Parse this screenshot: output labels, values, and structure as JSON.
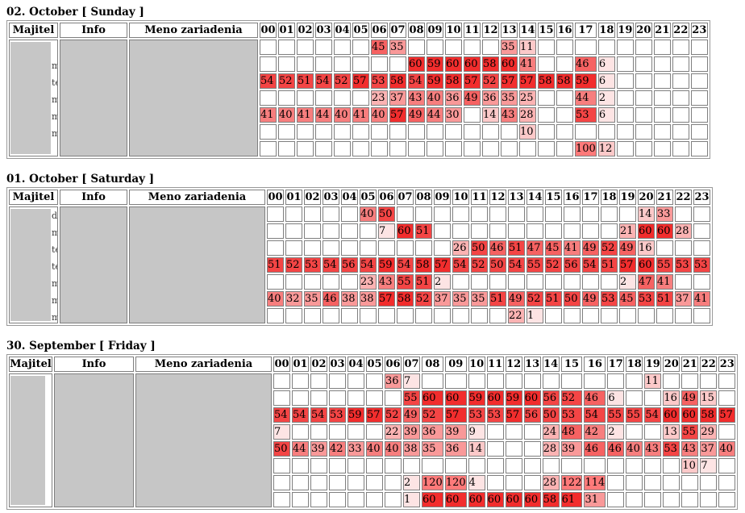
{
  "headers": {
    "owner": "Majitel",
    "info": "Info",
    "device": "Meno zariadenia"
  },
  "days": [
    {
      "title": "02. October [ Sunday ]",
      "hours": [
        "00",
        "01",
        "02",
        "03",
        "04",
        "05",
        "06",
        "07",
        "08",
        "09",
        "10",
        "11",
        "12",
        "13",
        "14",
        "15",
        "16",
        "17",
        "18",
        "19",
        "20",
        "21",
        "22",
        "23"
      ],
      "stubs": [
        "",
        "m",
        "te",
        "m",
        "m",
        "m",
        ""
      ],
      "rows": [
        [
          "",
          "",
          "",
          "",
          "",
          "",
          "45",
          "35",
          "",
          "",
          "",
          "",
          "",
          "35",
          "11",
          "",
          "",
          "",
          "",
          "",
          "",
          "",
          "",
          ""
        ],
        [
          "",
          "",
          "",
          "",
          "",
          "",
          "",
          "",
          "60",
          "59",
          "60",
          "60",
          "58",
          "60",
          "41",
          "",
          "",
          "46",
          "6",
          "",
          "",
          "",
          "",
          ""
        ],
        [
          "54",
          "52",
          "51",
          "54",
          "52",
          "57",
          "53",
          "58",
          "54",
          "59",
          "58",
          "57",
          "52",
          "57",
          "57",
          "58",
          "58",
          "59",
          "6",
          "",
          "",
          "",
          "",
          ""
        ],
        [
          "",
          "",
          "",
          "",
          "",
          "",
          "23",
          "37",
          "43",
          "40",
          "36",
          "49",
          "36",
          "35",
          "25",
          "",
          "",
          "44",
          "2",
          "",
          "",
          "",
          "",
          ""
        ],
        [
          "41",
          "40",
          "41",
          "44",
          "40",
          "41",
          "40",
          "57",
          "49",
          "44",
          "30",
          "",
          "14",
          "43",
          "28",
          "",
          "",
          "53",
          "6",
          "",
          "",
          "",
          "",
          ""
        ],
        [
          "",
          "",
          "",
          "",
          "",
          "",
          "",
          "",
          "",
          "",
          "",
          "",
          "",
          "",
          "10",
          "",
          "",
          "",
          "",
          "",
          "",
          "",
          "",
          ""
        ],
        [
          "",
          "",
          "",
          "",
          "",
          "",
          "",
          "",
          "",
          "",
          "",
          "",
          "",
          "",
          "",
          "",
          "",
          "100",
          "12",
          "",
          "",
          "",
          "",
          ""
        ]
      ]
    },
    {
      "title": "01. October [ Saturday ]",
      "hours": [
        "00",
        "01",
        "02",
        "03",
        "04",
        "05",
        "06",
        "07",
        "08",
        "09",
        "10",
        "11",
        "12",
        "13",
        "14",
        "15",
        "16",
        "17",
        "18",
        "19",
        "20",
        "21",
        "22",
        "23"
      ],
      "stubs": [
        "d",
        "m",
        "te",
        "te",
        "m",
        "m",
        "m"
      ],
      "rows": [
        [
          "",
          "",
          "",
          "",
          "",
          "40",
          "50",
          "",
          "",
          "",
          "",
          "",
          "",
          "",
          "",
          "",
          "",
          "",
          "",
          "",
          "14",
          "33",
          "",
          ""
        ],
        [
          "",
          "",
          "",
          "",
          "",
          "",
          "7",
          "60",
          "51",
          "",
          "",
          "",
          "",
          "",
          "",
          "",
          "",
          "",
          "",
          "21",
          "60",
          "60",
          "28",
          ""
        ],
        [
          "",
          "",
          "",
          "",
          "",
          "",
          "",
          "",
          "",
          "",
          "26",
          "50",
          "46",
          "51",
          "47",
          "45",
          "41",
          "49",
          "52",
          "49",
          "16",
          "",
          "",
          ""
        ],
        [
          "51",
          "52",
          "53",
          "54",
          "56",
          "54",
          "59",
          "54",
          "58",
          "57",
          "54",
          "52",
          "50",
          "54",
          "55",
          "52",
          "56",
          "54",
          "51",
          "57",
          "60",
          "55",
          "53",
          "53"
        ],
        [
          "",
          "",
          "",
          "",
          "",
          "23",
          "43",
          "55",
          "51",
          "2",
          "",
          "",
          "",
          "",
          "",
          "",
          "",
          "",
          "",
          "2",
          "47",
          "41",
          "",
          ""
        ],
        [
          "40",
          "32",
          "35",
          "46",
          "38",
          "38",
          "57",
          "58",
          "52",
          "37",
          "35",
          "35",
          "51",
          "49",
          "52",
          "51",
          "50",
          "49",
          "53",
          "45",
          "53",
          "51",
          "37",
          "41"
        ],
        [
          "",
          "",
          "",
          "",
          "",
          "",
          "",
          "",
          "",
          "",
          "",
          "",
          "",
          "22",
          "1",
          "",
          "",
          "",
          "",
          "",
          "",
          "",
          "",
          ""
        ]
      ]
    },
    {
      "title": "30. September [ Friday ]",
      "hours": [
        "00",
        "01",
        "02",
        "03",
        "04",
        "05",
        "06",
        "07",
        "08",
        "09",
        "10",
        "11",
        "12",
        "13",
        "14",
        "15",
        "16",
        "17",
        "18",
        "19",
        "20",
        "21",
        "22",
        "23"
      ],
      "stubs": [
        "",
        "",
        "",
        "",
        "",
        "",
        "",
        ""
      ],
      "rows": [
        [
          "",
          "",
          "",
          "",
          "",
          "",
          "36",
          "7",
          "",
          "",
          "",
          "",
          "",
          "",
          "",
          "",
          "",
          "",
          "",
          "11",
          "",
          "",
          "",
          ""
        ],
        [
          "",
          "",
          "",
          "",
          "",
          "",
          "",
          "55",
          "60",
          "60",
          "59",
          "60",
          "59",
          "60",
          "56",
          "52",
          "46",
          "6",
          "",
          "",
          "16",
          "49",
          "15",
          ""
        ],
        [
          "54",
          "54",
          "54",
          "53",
          "59",
          "57",
          "52",
          "49",
          "52",
          "57",
          "53",
          "53",
          "57",
          "56",
          "50",
          "53",
          "54",
          "55",
          "55",
          "54",
          "60",
          "60",
          "58",
          "57"
        ],
        [
          "7",
          "",
          "",
          "",
          "",
          "",
          "22",
          "39",
          "36",
          "39",
          "9",
          "",
          "",
          "",
          "24",
          "48",
          "42",
          "2",
          "",
          "",
          "13",
          "55",
          "29",
          ""
        ],
        [
          "50",
          "44",
          "39",
          "42",
          "33",
          "40",
          "40",
          "38",
          "35",
          "36",
          "14",
          "",
          "",
          "",
          "28",
          "39",
          "46",
          "46",
          "40",
          "43",
          "53",
          "43",
          "37",
          "40"
        ],
        [
          "",
          "",
          "",
          "",
          "",
          "",
          "",
          "",
          "",
          "",
          "",
          "",
          "",
          "",
          "",
          "",
          "",
          "",
          "",
          "",
          "",
          "10",
          "7",
          ""
        ],
        [
          "",
          "",
          "",
          "",
          "",
          "",
          "",
          "2",
          "120",
          "120",
          "4",
          "",
          "",
          "",
          "28",
          "122",
          "114",
          "",
          "",
          "",
          "",
          "",
          "",
          ""
        ],
        [
          "",
          "",
          "",
          "",
          "",
          "",
          "",
          "1",
          "60",
          "60",
          "60",
          "60",
          "60",
          "60",
          "58",
          "61",
          "31",
          "",
          "",
          "",
          "",
          "",
          "",
          ""
        ]
      ]
    }
  ]
}
